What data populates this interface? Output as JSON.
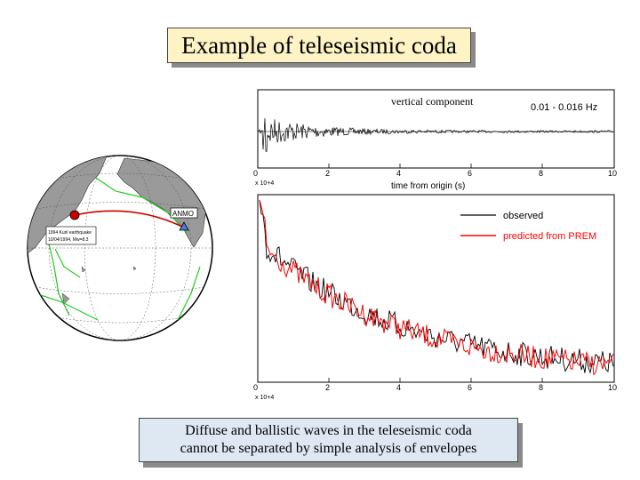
{
  "slide": {
    "title": "Example of teleseismic coda",
    "caption_line1": "Diffuse and ballistic waves in the teleseismic coda",
    "caption_line2": "cannot be separated by simple analysis of envelopes"
  },
  "globe": {
    "station_label": "ANMO",
    "event_label_line1": "1994 Kuril earthquake",
    "event_label_line2": "10/04/1994, Mw=8.3",
    "colors": {
      "ocean": "#ffffff",
      "land": "#9a9a9a",
      "path": "#cc0000",
      "plates": "#22cc22"
    }
  },
  "top_panel": {
    "component_label": "vertical component",
    "band_label": "0.01 - 0.016 Hz",
    "x_ticks": [
      "0",
      "2",
      "4",
      "6",
      "8",
      "10"
    ],
    "x_scale": "x 10+4",
    "xlabel": "time from origin (s)"
  },
  "bottom_panel": {
    "x_ticks": [
      "0",
      "2",
      "4",
      "6",
      "8",
      "10"
    ],
    "x_scale": "x 10+4",
    "legend": [
      {
        "label": "observed",
        "color": "#000000"
      },
      {
        "label": "predicted from PREM",
        "color": "#ff0000"
      }
    ]
  }
}
